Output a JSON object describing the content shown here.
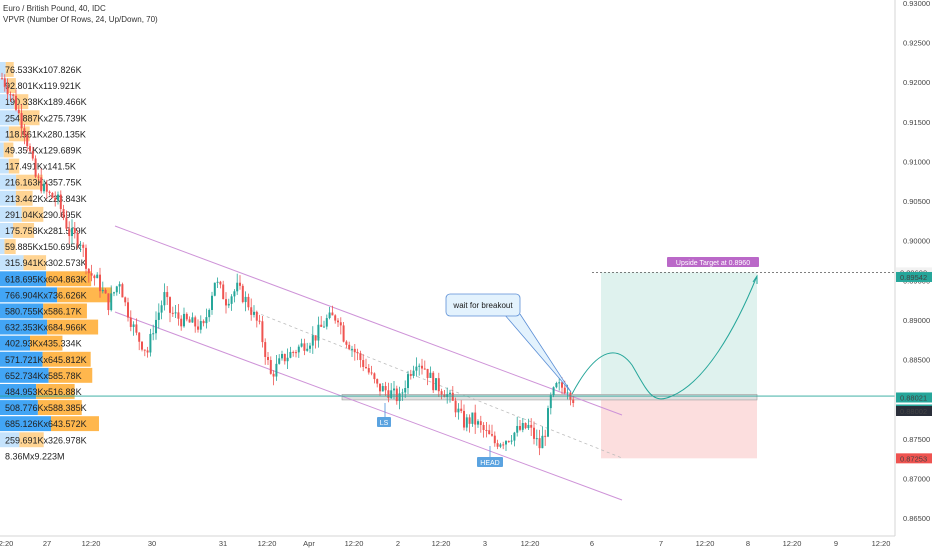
{
  "header": {
    "symbol_line": "Euro / British Pound, 40, IDC",
    "indicator_line": "VPVR (Number Of Rows, 24, Up/Down, 70)"
  },
  "colors": {
    "up_candle": "#26a69a",
    "down_candle": "#ef5350",
    "vp_up": "#bbdefb",
    "vp_down": "#ffcc80",
    "vp_up_value_area": "#42a5f5",
    "vp_down_value_area": "#ffb74d",
    "channel": "#ce93d8",
    "target_zone": "#dff2ee",
    "stop_zone": "#fcdede",
    "target_badge": "#ba68c8",
    "current_line": "#26a69a"
  },
  "chart_data": {
    "type": "candlestick",
    "y_axis": {
      "ylim": [
        0.8635,
        0.9305
      ],
      "ticks": [
        "0.93000",
        "0.92500",
        "0.92000",
        "0.91500",
        "0.91000",
        "0.90500",
        "0.90000",
        "0.89500",
        "0.89000",
        "0.88500",
        "0.88000",
        "0.87500",
        "0.87000",
        "0.86500"
      ]
    },
    "x_axis": {
      "ticks": [
        "2:20",
        "27",
        "12:20",
        "30",
        "31",
        "12:20",
        "Apr",
        "12:20",
        "2",
        "12:20",
        "3",
        "12:20",
        "6",
        "7",
        "12:20",
        "8",
        "12:20",
        "9",
        "12:20"
      ]
    },
    "price_badges": [
      {
        "label": "0.89600",
        "style": "dashed"
      },
      {
        "label": "0.89542",
        "style": "green"
      },
      {
        "label": "0.88021",
        "style": "green"
      },
      {
        "label": "23:59",
        "style": "green"
      },
      {
        "label": "0.88002",
        "style": "dark"
      },
      {
        "label": "0.87253",
        "style": "red"
      }
    ],
    "volume_profile": [
      {
        "label": "76.533Kx107.826K",
        "up": 76.533,
        "down": 107.826,
        "value_area": false
      },
      {
        "label": "92.801Kx119.921K",
        "up": 92.801,
        "down": 119.921,
        "value_area": false
      },
      {
        "label": "190.338Kx189.466K",
        "up": 190.338,
        "down": 189.466,
        "value_area": false
      },
      {
        "label": "254.887Kx275.739K",
        "up": 254.887,
        "down": 275.739,
        "value_area": false
      },
      {
        "label": "118.561Kx280.135K",
        "up": 118.561,
        "down": 280.135,
        "value_area": false
      },
      {
        "label": "49.351Kx129.689K",
        "up": 49.351,
        "down": 129.689,
        "value_area": false
      },
      {
        "label": "117.491Kx141.5K",
        "up": 117.491,
        "down": 141.5,
        "value_area": false
      },
      {
        "label": "216.163Kx357.75K",
        "up": 216.163,
        "down": 357.75,
        "value_area": false
      },
      {
        "label": "213.442Kx223.843K",
        "up": 213.442,
        "down": 223.843,
        "value_area": false
      },
      {
        "label": "291.04Kx290.695K",
        "up": 291.04,
        "down": 290.695,
        "value_area": false
      },
      {
        "label": "175.758Kx281.509K",
        "up": 175.758,
        "down": 281.509,
        "value_area": false
      },
      {
        "label": "59.885Kx150.695K",
        "up": 59.885,
        "down": 150.695,
        "value_area": false
      },
      {
        "label": "315.941Kx302.573K",
        "up": 315.941,
        "down": 302.573,
        "value_area": false
      },
      {
        "label": "618.695Kx604.863K",
        "up": 618.695,
        "down": 604.863,
        "value_area": true
      },
      {
        "label": "766.904Kx736.626K",
        "up": 766.904,
        "down": 736.626,
        "value_area": true
      },
      {
        "label": "580.755Kx586.17K",
        "up": 580.755,
        "down": 586.17,
        "value_area": true
      },
      {
        "label": "632.353Kx684.966K",
        "up": 632.353,
        "down": 684.966,
        "value_area": true
      },
      {
        "label": "402.93Kx435.334K",
        "up": 402.93,
        "down": 435.334,
        "value_area": true
      },
      {
        "label": "571.721Kx645.812K",
        "up": 571.721,
        "down": 645.812,
        "value_area": true
      },
      {
        "label": "652.734Kx585.78K",
        "up": 652.734,
        "down": 585.78,
        "value_area": true
      },
      {
        "label": "484.953Kx516.88K",
        "up": 484.953,
        "down": 516.88,
        "value_area": true
      },
      {
        "label": "508.776Kx588.385K",
        "up": 508.776,
        "down": 588.385,
        "value_area": true
      },
      {
        "label": "685.126Kx643.572K",
        "up": 685.126,
        "down": 643.572,
        "value_area": true
      },
      {
        "label": "259.691Kx326.978K",
        "up": 259.691,
        "down": 326.978,
        "value_area": false
      }
    ],
    "total_volume_label": "8.36Mx9.223M",
    "price_path": [
      [
        0,
        0.9205
      ],
      [
        4,
        0.918
      ],
      [
        8,
        0.914
      ],
      [
        12,
        0.908
      ],
      [
        16,
        0.906
      ],
      [
        20,
        0.905
      ],
      [
        24,
        0.901
      ],
      [
        28,
        0.9
      ],
      [
        31,
        0.896
      ],
      [
        34,
        0.895
      ],
      [
        38,
        0.892
      ],
      [
        42,
        0.895
      ],
      [
        44,
        0.892
      ],
      [
        48,
        0.888
      ],
      [
        52,
        0.886
      ],
      [
        54,
        0.889
      ],
      [
        58,
        0.893
      ],
      [
        60,
        0.891
      ],
      [
        64,
        0.89
      ],
      [
        68,
        0.8895
      ],
      [
        72,
        0.889
      ],
      [
        76,
        0.895
      ],
      [
        80,
        0.8925
      ],
      [
        84,
        0.894
      ],
      [
        88,
        0.892
      ],
      [
        92,
        0.889
      ],
      [
        96,
        0.883
      ],
      [
        100,
        0.885
      ],
      [
        104,
        0.886
      ],
      [
        108,
        0.887
      ],
      [
        112,
        0.888
      ],
      [
        116,
        0.89
      ],
      [
        120,
        0.8905
      ],
      [
        122,
        0.888
      ],
      [
        126,
        0.886
      ],
      [
        130,
        0.884
      ],
      [
        134,
        0.8815
      ],
      [
        138,
        0.881
      ],
      [
        142,
        0.88
      ],
      [
        145,
        0.883
      ],
      [
        148,
        0.885
      ],
      [
        151,
        0.884
      ],
      [
        154,
        0.882
      ],
      [
        158,
        0.881
      ],
      [
        162,
        0.879
      ],
      [
        165,
        0.877
      ],
      [
        168,
        0.8775
      ],
      [
        172,
        0.876
      ],
      [
        176,
        0.8745
      ],
      [
        180,
        0.875
      ],
      [
        184,
        0.876
      ],
      [
        188,
        0.8765
      ],
      [
        192,
        0.874
      ],
      [
        194,
        0.876
      ],
      [
        196,
        0.88
      ],
      [
        198,
        0.8815
      ],
      [
        202,
        0.8815
      ],
      [
        204,
        0.8802
      ]
    ],
    "annotations": {
      "target_label": "Upside Target at 0.8960",
      "callout": "wait for breakout",
      "ls_label": "LS",
      "head_label": "HEAD",
      "target_price": 0.896,
      "entry_price": 0.8802,
      "stop_price": 0.87253
    }
  }
}
